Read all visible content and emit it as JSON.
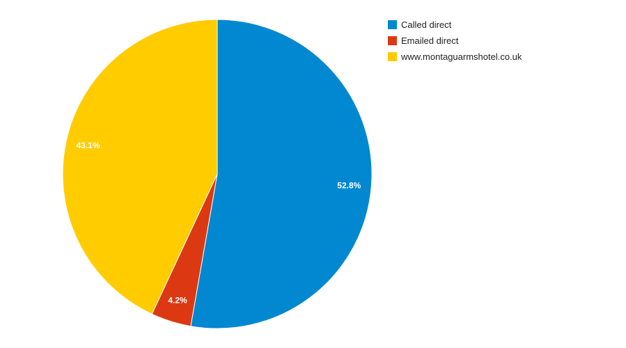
{
  "chart_data": {
    "type": "pie",
    "categories": [
      "Called direct",
      "Emailed direct",
      "www.montaguarmshotel.co.uk"
    ],
    "values": [
      52.8,
      4.2,
      43.1
    ],
    "value_labels": [
      "52.8%",
      "4.2%",
      "43.1%"
    ],
    "colors": [
      "#0288d1",
      "#dc3912",
      "#ffcc00"
    ],
    "start_angle_deg": 0,
    "direction": "clockwise",
    "legend_position": "top-right"
  }
}
